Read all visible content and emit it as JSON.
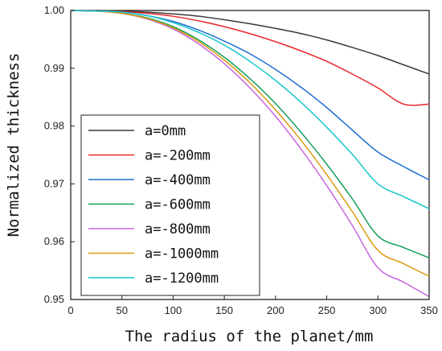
{
  "chart_data": {
    "type": "line",
    "xlabel": "The radius of the planet/mm",
    "ylabel": "Normalized thickness",
    "xlim": [
      0,
      350
    ],
    "ylim": [
      0.95,
      1.0
    ],
    "x_ticks": [
      0,
      50,
      100,
      150,
      200,
      250,
      300,
      350
    ],
    "x_tick_labels": [
      "0",
      "50",
      "100",
      "150",
      "200",
      "250",
      "300",
      "350"
    ],
    "y_ticks": [
      0.95,
      0.96,
      0.97,
      0.98,
      0.99,
      1.0
    ],
    "y_tick_labels": [
      "0.95",
      "0.96",
      "0.97",
      "0.98",
      "0.99",
      "1.00"
    ],
    "grid": false,
    "legend_position": "lower-left",
    "x": [
      0,
      25,
      50,
      75,
      100,
      125,
      150,
      175,
      200,
      225,
      250,
      275,
      300,
      325,
      350
    ],
    "series": [
      {
        "name": "a=0mm",
        "color": "#3a3a3a",
        "values": [
          1.0,
          1.0,
          0.9999,
          0.9997,
          0.9994,
          0.999,
          0.9984,
          0.9977,
          0.9969,
          0.996,
          0.9949,
          0.9936,
          0.9922,
          0.9906,
          0.989
        ]
      },
      {
        "name": "a=-200mm",
        "color": "#e8262a",
        "values": [
          1.0,
          0.9999,
          0.9998,
          0.9995,
          0.999,
          0.9982,
          0.9972,
          0.996,
          0.9946,
          0.993,
          0.9912,
          0.989,
          0.9866,
          0.9838,
          0.9838
        ]
      },
      {
        "name": "a=-400mm",
        "color": "#1f6fd1",
        "values": [
          1.0,
          0.9999,
          0.9997,
          0.9991,
          0.9981,
          0.9966,
          0.9947,
          0.9925,
          0.9898,
          0.9867,
          0.9832,
          0.9793,
          0.9755,
          0.973,
          0.9707
        ]
      },
      {
        "name": "a=-600mm",
        "color": "#13a05a",
        "values": [
          1.0,
          0.9999,
          0.9995,
          0.9987,
          0.9972,
          0.9949,
          0.9919,
          0.9882,
          0.9839,
          0.9789,
          0.9734,
          0.9674,
          0.961,
          0.959,
          0.9572
        ]
      },
      {
        "name": "a=-800mm",
        "color": "#c766e0",
        "values": [
          1.0,
          0.9999,
          0.9995,
          0.9985,
          0.9968,
          0.9942,
          0.9908,
          0.9866,
          0.9817,
          0.976,
          0.9697,
          0.9628,
          0.9555,
          0.953,
          0.9505
        ]
      },
      {
        "name": "a=-1000mm",
        "color": "#d99a0e",
        "values": [
          1.0,
          0.9999,
          0.9995,
          0.9986,
          0.997,
          0.9946,
          0.9914,
          0.9875,
          0.9828,
          0.9775,
          0.9716,
          0.9652,
          0.9585,
          0.9562,
          0.954
        ]
      },
      {
        "name": "a=-1200mm",
        "color": "#16c6cc",
        "values": [
          1.0,
          0.9999,
          0.9997,
          0.9991,
          0.9979,
          0.9962,
          0.994,
          0.9912,
          0.9879,
          0.9841,
          0.9798,
          0.9751,
          0.97,
          0.9678,
          0.9657
        ]
      }
    ]
  }
}
